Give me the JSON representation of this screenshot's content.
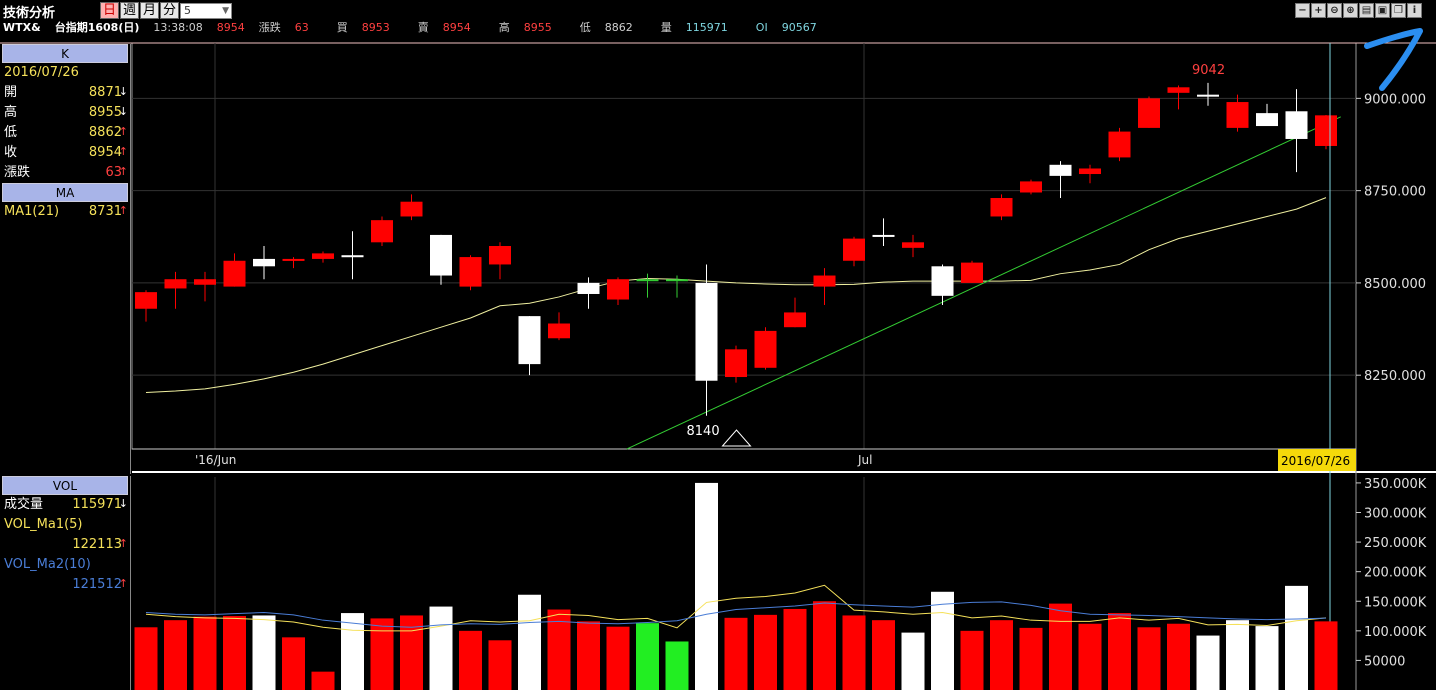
{
  "app": {
    "title": "技術分析",
    "periods": [
      "日",
      "週",
      "月",
      "分"
    ],
    "active_period": "日",
    "interval": "5",
    "toolbar_icons": [
      "zoom-out-icon",
      "zoom-in-icon",
      "zoom-x-icon",
      "zoom-y-icon",
      "config-icon",
      "save-icon",
      "window-icon",
      "info-icon"
    ],
    "toolbar_glyphs": [
      "−",
      "+",
      "⊖",
      "⊕",
      "▤",
      "▣",
      "❐",
      "i"
    ]
  },
  "quote": {
    "symbol": "WTX&",
    "name": "台指期1608(日)",
    "time": "13:38:08",
    "last": "8954",
    "change_label": "漲跌",
    "change": "63",
    "bid_label": "買",
    "bid": "8953",
    "ask_label": "賣",
    "ask": "8954",
    "high_label": "高",
    "high": "8955",
    "low_label": "低",
    "low": "8862",
    "vol_label": "量",
    "vol": "115971",
    "oi_label": "OI",
    "oi": "90567"
  },
  "k_panel": {
    "header": "K",
    "date": "2016/07/26",
    "rows": [
      {
        "label": "開",
        "value": "8871",
        "dir": "down"
      },
      {
        "label": "高",
        "value": "8955",
        "dir": "down"
      },
      {
        "label": "低",
        "value": "8862",
        "dir": "up"
      },
      {
        "label": "收",
        "value": "8954",
        "dir": "up"
      },
      {
        "label": "漲跌",
        "value": "63",
        "dir": "up"
      }
    ]
  },
  "ma_panel": {
    "header": "MA",
    "rows": [
      {
        "label": "MA1(21)",
        "value": "8731",
        "dir": "up"
      }
    ]
  },
  "vol_panel": {
    "header": "VOL",
    "volume_label": "成交量",
    "volume_value": "115971",
    "ma1_label": "VOL_Ma1(5)",
    "ma1_value": "122113",
    "ma2_label": "VOL_Ma2(10)",
    "ma2_value": "121512"
  },
  "colors": {
    "up": "#ff0000",
    "down": "#ffffff",
    "ma": "#f0f0a0",
    "trend": "#33cc33",
    "vol_ma1": "#f5e15a",
    "vol_ma2": "#4a7dd6",
    "vol_green": "#22ee22",
    "grid": "#333333"
  },
  "chart_data": [
    {
      "type": "candlestick",
      "xlabel": "",
      "ylabel": "",
      "ylim": [
        8050,
        9150
      ],
      "yticks": [
        "8250.000",
        "8500.000",
        "8750.000",
        "9000.000"
      ],
      "ytick_values": [
        8250,
        8500,
        8750,
        9000
      ],
      "x_month_labels": [
        {
          "label": "'16/Jun",
          "index": 2
        },
        {
          "label": "Jul",
          "index": 24
        }
      ],
      "cursor_date": "2016/07/26",
      "high_annotation": "9042",
      "low_annotation": "8140",
      "candles": [
        {
          "o": 8430,
          "c": 8475,
          "h": 8480,
          "l": 8395
        },
        {
          "o": 8485,
          "c": 8510,
          "h": 8530,
          "l": 8430
        },
        {
          "o": 8495,
          "c": 8510,
          "h": 8530,
          "l": 8450
        },
        {
          "o": 8490,
          "c": 8560,
          "h": 8580,
          "l": 8490
        },
        {
          "o": 8565,
          "c": 8545,
          "h": 8600,
          "l": 8510
        },
        {
          "o": 8560,
          "c": 8565,
          "h": 8570,
          "l": 8540
        },
        {
          "o": 8565,
          "c": 8580,
          "h": 8585,
          "l": 8555
        },
        {
          "o": 8575,
          "c": 8575,
          "h": 8640,
          "l": 8510
        },
        {
          "o": 8610,
          "c": 8670,
          "h": 8680,
          "l": 8600
        },
        {
          "o": 8680,
          "c": 8720,
          "h": 8740,
          "l": 8670
        },
        {
          "o": 8630,
          "c": 8520,
          "h": 8630,
          "l": 8495
        },
        {
          "o": 8490,
          "c": 8570,
          "h": 8575,
          "l": 8480
        },
        {
          "o": 8550,
          "c": 8600,
          "h": 8610,
          "l": 8510
        },
        {
          "o": 8410,
          "c": 8280,
          "h": 8410,
          "l": 8250
        },
        {
          "o": 8350,
          "c": 8390,
          "h": 8420,
          "l": 8345
        },
        {
          "o": 8500,
          "c": 8470,
          "h": 8515,
          "l": 8430
        },
        {
          "o": 8455,
          "c": 8510,
          "h": 8515,
          "l": 8440
        },
        {
          "o": 8510,
          "c": 8510,
          "h": 8525,
          "l": 8460
        },
        {
          "o": 8510,
          "c": 8510,
          "h": 8520,
          "l": 8460
        },
        {
          "o": 8500,
          "c": 8235,
          "h": 8550,
          "l": 8140
        },
        {
          "o": 8245,
          "c": 8320,
          "h": 8330,
          "l": 8230
        },
        {
          "o": 8270,
          "c": 8370,
          "h": 8380,
          "l": 8265
        },
        {
          "o": 8380,
          "c": 8420,
          "h": 8460,
          "l": 8380
        },
        {
          "o": 8490,
          "c": 8520,
          "h": 8540,
          "l": 8440
        },
        {
          "o": 8560,
          "c": 8620,
          "h": 8625,
          "l": 8545
        },
        {
          "o": 8630,
          "c": 8630,
          "h": 8675,
          "l": 8600
        },
        {
          "o": 8595,
          "c": 8610,
          "h": 8630,
          "l": 8570
        },
        {
          "o": 8545,
          "c": 8465,
          "h": 8550,
          "l": 8440
        },
        {
          "o": 8500,
          "c": 8555,
          "h": 8560,
          "l": 8500
        },
        {
          "o": 8680,
          "c": 8730,
          "h": 8740,
          "l": 8670
        },
        {
          "o": 8745,
          "c": 8775,
          "h": 8780,
          "l": 8740
        },
        {
          "o": 8820,
          "c": 8790,
          "h": 8830,
          "l": 8730
        },
        {
          "o": 8795,
          "c": 8810,
          "h": 8820,
          "l": 8770
        },
        {
          "o": 8840,
          "c": 8910,
          "h": 8920,
          "l": 8830
        },
        {
          "o": 8920,
          "c": 9000,
          "h": 9005,
          "l": 8920
        },
        {
          "o": 9015,
          "c": 9030,
          "h": 9035,
          "l": 8970
        },
        {
          "o": 9010,
          "c": 9005,
          "h": 9042,
          "l": 8980
        },
        {
          "o": 8920,
          "c": 8990,
          "h": 9010,
          "l": 8910
        },
        {
          "o": 8960,
          "c": 8925,
          "h": 8985,
          "l": 8925
        },
        {
          "o": 8965,
          "c": 8890,
          "h": 9025,
          "l": 8800
        },
        {
          "o": 8871,
          "c": 8954,
          "h": 8955,
          "l": 8862
        }
      ],
      "ma21": [
        8203,
        8207,
        8213,
        8225,
        8240,
        8258,
        8280,
        8305,
        8330,
        8355,
        8380,
        8405,
        8438,
        8445,
        8462,
        8485,
        8505,
        8512,
        8510,
        8505,
        8500,
        8497,
        8495,
        8495,
        8496,
        8502,
        8505,
        8505,
        8505,
        8505,
        8507,
        8525,
        8535,
        8550,
        8590,
        8620,
        8640,
        8660,
        8680,
        8700,
        8731
      ],
      "trendline": {
        "from": {
          "index": 16.3,
          "value": 8050
        },
        "to": {
          "index": 40.5,
          "value": 8950
        }
      }
    },
    {
      "type": "bar",
      "title": "VOL",
      "ylim": [
        0,
        360000
      ],
      "yticks": [
        "50000",
        "100.000K",
        "150.000K",
        "200.000K",
        "250.000K",
        "300.000K",
        "350.000K"
      ],
      "ytick_values": [
        50000,
        100000,
        150000,
        200000,
        250000,
        300000,
        350000
      ],
      "values": [
        106000,
        118000,
        124000,
        125000,
        126000,
        89000,
        31000,
        130000,
        121000,
        126000,
        141000,
        100000,
        84000,
        161000,
        136000,
        116000,
        107000,
        113000,
        82000,
        350000,
        122000,
        127000,
        137000,
        150000,
        126000,
        118000,
        97000,
        166000,
        100000,
        118000,
        105000,
        146000,
        112000,
        130000,
        106000,
        112000,
        92000,
        118000,
        108000,
        176000,
        116000
      ],
      "bar_colors": [
        "up",
        "up",
        "up",
        "up",
        "down",
        "up",
        "up",
        "down",
        "up",
        "up",
        "down",
        "up",
        "up",
        "down",
        "up",
        "up",
        "up",
        "green",
        "green",
        "down",
        "up",
        "up",
        "up",
        "up",
        "up",
        "up",
        "down",
        "down",
        "up",
        "up",
        "up",
        "up",
        "up",
        "up",
        "up",
        "up",
        "down",
        "down",
        "down",
        "down",
        "up"
      ],
      "ma1": [
        128000,
        124000,
        122000,
        121000,
        119000,
        115000,
        106000,
        101000,
        100000,
        100000,
        108000,
        117000,
        115000,
        117000,
        128000,
        126000,
        119000,
        121000,
        105000,
        148000,
        155000,
        158000,
        164000,
        177000,
        135000,
        132000,
        128000,
        131000,
        122000,
        125000,
        118000,
        116000,
        116000,
        122000,
        118000,
        121000,
        110000,
        111000,
        109000,
        117000,
        122000
      ],
      "ma2": [
        131000,
        128000,
        127000,
        129000,
        131000,
        127000,
        118000,
        113000,
        108000,
        106000,
        110000,
        112000,
        111000,
        114000,
        116000,
        113000,
        112000,
        114000,
        117000,
        128000,
        136000,
        139000,
        142000,
        147000,
        144000,
        142000,
        140000,
        145000,
        148000,
        149000,
        143000,
        134000,
        128000,
        127000,
        126000,
        124000,
        122000,
        120000,
        119000,
        120000,
        121512
      ]
    }
  ]
}
